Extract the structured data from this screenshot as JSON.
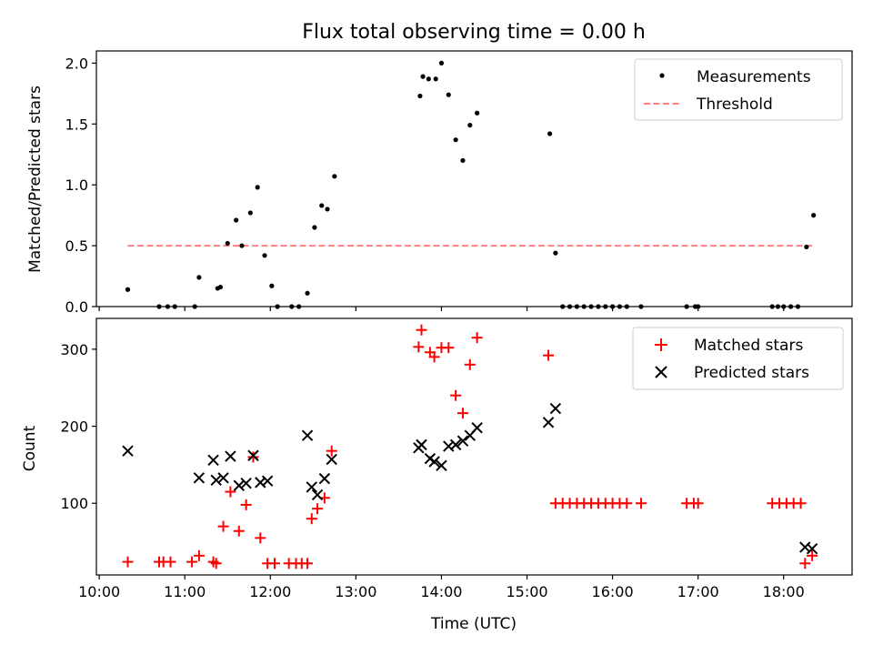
{
  "chart_data": [
    {
      "type": "scatter",
      "title": "Flux total observing time = 0.00 h",
      "xlabel": "",
      "ylabel": "Matched/Predicted stars",
      "xlim": [
        "09:58",
        "18:48"
      ],
      "ylim": [
        0,
        2.1
      ],
      "yticks": [
        0.0,
        0.5,
        1.0,
        1.5,
        2.0
      ],
      "ytick_labels": [
        "0.0",
        "0.5",
        "1.0",
        "1.5",
        "2.0"
      ],
      "grid": false,
      "legend_position": "top-right",
      "series": [
        {
          "name": "Measurements",
          "marker": "dot",
          "color": "#000000",
          "points": [
            [
              "10:20",
              0.14
            ],
            [
              "10:42",
              0.0
            ],
            [
              "10:48",
              0.0
            ],
            [
              "10:53",
              0.0
            ],
            [
              "11:07",
              0.0
            ],
            [
              "11:10",
              0.24
            ],
            [
              "11:23",
              0.15
            ],
            [
              "11:25",
              0.16
            ],
            [
              "11:30",
              0.52
            ],
            [
              "11:36",
              0.71
            ],
            [
              "11:40",
              0.5
            ],
            [
              "11:46",
              0.77
            ],
            [
              "11:51",
              0.98
            ],
            [
              "11:56",
              0.42
            ],
            [
              "12:01",
              0.17
            ],
            [
              "12:05",
              0.0
            ],
            [
              "12:15",
              0.0
            ],
            [
              "12:20",
              0.0
            ],
            [
              "12:26",
              0.11
            ],
            [
              "12:31",
              0.65
            ],
            [
              "12:36",
              0.83
            ],
            [
              "12:40",
              0.8
            ],
            [
              "12:45",
              1.07
            ],
            [
              "13:45",
              1.73
            ],
            [
              "13:47",
              1.89
            ],
            [
              "13:51",
              1.87
            ],
            [
              "13:56",
              1.87
            ],
            [
              "14:00",
              2.0
            ],
            [
              "14:05",
              1.74
            ],
            [
              "14:10",
              1.37
            ],
            [
              "14:15",
              1.2
            ],
            [
              "14:20",
              1.49
            ],
            [
              "14:25",
              1.59
            ],
            [
              "15:16",
              1.42
            ],
            [
              "15:20",
              0.44
            ],
            [
              "15:25",
              0.0
            ],
            [
              "15:30",
              0.0
            ],
            [
              "15:35",
              0.0
            ],
            [
              "15:40",
              0.0
            ],
            [
              "15:45",
              0.0
            ],
            [
              "15:50",
              0.0
            ],
            [
              "15:55",
              0.0
            ],
            [
              "16:00",
              0.0
            ],
            [
              "16:05",
              0.0
            ],
            [
              "16:10",
              0.0
            ],
            [
              "16:20",
              0.0
            ],
            [
              "16:52",
              0.0
            ],
            [
              "16:58",
              0.0
            ],
            [
              "17:00",
              0.0
            ],
            [
              "17:52",
              0.0
            ],
            [
              "17:56",
              0.0
            ],
            [
              "18:00",
              0.0
            ],
            [
              "18:05",
              0.0
            ],
            [
              "18:10",
              0.0
            ],
            [
              "18:16",
              0.49
            ],
            [
              "18:21",
              0.75
            ]
          ]
        },
        {
          "name": "Threshold",
          "marker": "dashed-line",
          "color": "#ff7f7f",
          "points": [
            [
              "10:20",
              0.5
            ],
            [
              "18:21",
              0.5
            ]
          ]
        }
      ]
    },
    {
      "type": "scatter",
      "title": "",
      "xlabel": "Time (UTC)",
      "ylabel": "Count",
      "xlim": [
        "09:58",
        "18:48"
      ],
      "ylim": [
        7,
        340
      ],
      "yticks": [
        100,
        200,
        300
      ],
      "ytick_labels": [
        "100",
        "200",
        "300"
      ],
      "xticks": [
        "10:00",
        "11:00",
        "12:00",
        "13:00",
        "14:00",
        "15:00",
        "16:00",
        "17:00",
        "18:00"
      ],
      "xtick_labels": [
        "10:00",
        "11:00",
        "12:00",
        "13:00",
        "14:00",
        "15:00",
        "16:00",
        "17:00",
        "18:00"
      ],
      "grid": false,
      "legend_position": "top-right",
      "series": [
        {
          "name": "Matched stars",
          "marker": "plus",
          "color": "#ff0000",
          "points": [
            [
              "10:20",
              24
            ],
            [
              "10:42",
              24
            ],
            [
              "10:45",
              24
            ],
            [
              "10:50",
              24
            ],
            [
              "11:05",
              24
            ],
            [
              "11:10",
              32
            ],
            [
              "11:20",
              24
            ],
            [
              "11:22",
              22
            ],
            [
              "11:27",
              70
            ],
            [
              "11:32",
              115
            ],
            [
              "11:38",
              64
            ],
            [
              "11:43",
              98
            ],
            [
              "11:48",
              160
            ],
            [
              "11:53",
              55
            ],
            [
              "11:58",
              22
            ],
            [
              "12:03",
              22
            ],
            [
              "12:13",
              22
            ],
            [
              "12:18",
              22
            ],
            [
              "12:22",
              22
            ],
            [
              "12:26",
              22
            ],
            [
              "12:29",
              80
            ],
            [
              "12:33",
              93
            ],
            [
              "12:38",
              107
            ],
            [
              "12:43",
              168
            ],
            [
              "13:44",
              303
            ],
            [
              "13:46",
              325
            ],
            [
              "13:52",
              296
            ],
            [
              "13:55",
              290
            ],
            [
              "14:00",
              302
            ],
            [
              "14:05",
              302
            ],
            [
              "14:10",
              240
            ],
            [
              "14:15",
              217
            ],
            [
              "14:20",
              280
            ],
            [
              "14:25",
              315
            ],
            [
              "15:15",
              292
            ],
            [
              "15:20",
              100
            ],
            [
              "15:25",
              100
            ],
            [
              "15:30",
              100
            ],
            [
              "15:35",
              100
            ],
            [
              "15:40",
              100
            ],
            [
              "15:45",
              100
            ],
            [
              "15:50",
              100
            ],
            [
              "15:55",
              100
            ],
            [
              "16:00",
              100
            ],
            [
              "16:05",
              100
            ],
            [
              "16:10",
              100
            ],
            [
              "16:20",
              100
            ],
            [
              "16:52",
              100
            ],
            [
              "16:57",
              100
            ],
            [
              "17:00",
              100
            ],
            [
              "17:52",
              100
            ],
            [
              "17:57",
              100
            ],
            [
              "18:02",
              100
            ],
            [
              "18:07",
              100
            ],
            [
              "18:12",
              100
            ],
            [
              "18:15",
              22
            ],
            [
              "18:20",
              32
            ]
          ]
        },
        {
          "name": "Predicted stars",
          "marker": "x",
          "color": "#000000",
          "points": [
            [
              "10:20",
              168
            ],
            [
              "11:10",
              133
            ],
            [
              "11:20",
              156
            ],
            [
              "11:22",
              130
            ],
            [
              "11:27",
              133
            ],
            [
              "11:32",
              161
            ],
            [
              "11:38",
              123
            ],
            [
              "11:43",
              126
            ],
            [
              "11:48",
              162
            ],
            [
              "11:53",
              127
            ],
            [
              "11:58",
              129
            ],
            [
              "12:26",
              188
            ],
            [
              "12:29",
              121
            ],
            [
              "12:33",
              111
            ],
            [
              "12:38",
              132
            ],
            [
              "12:43",
              157
            ],
            [
              "13:44",
              172
            ],
            [
              "13:46",
              176
            ],
            [
              "13:52",
              158
            ],
            [
              "13:55",
              154
            ],
            [
              "14:00",
              149
            ],
            [
              "14:05",
              174
            ],
            [
              "14:10",
              176
            ],
            [
              "14:15",
              181
            ],
            [
              "14:20",
              188
            ],
            [
              "14:25",
              198
            ],
            [
              "15:15",
              205
            ],
            [
              "15:20",
              223
            ],
            [
              "18:15",
              43
            ],
            [
              "18:20",
              41
            ]
          ]
        }
      ]
    }
  ]
}
